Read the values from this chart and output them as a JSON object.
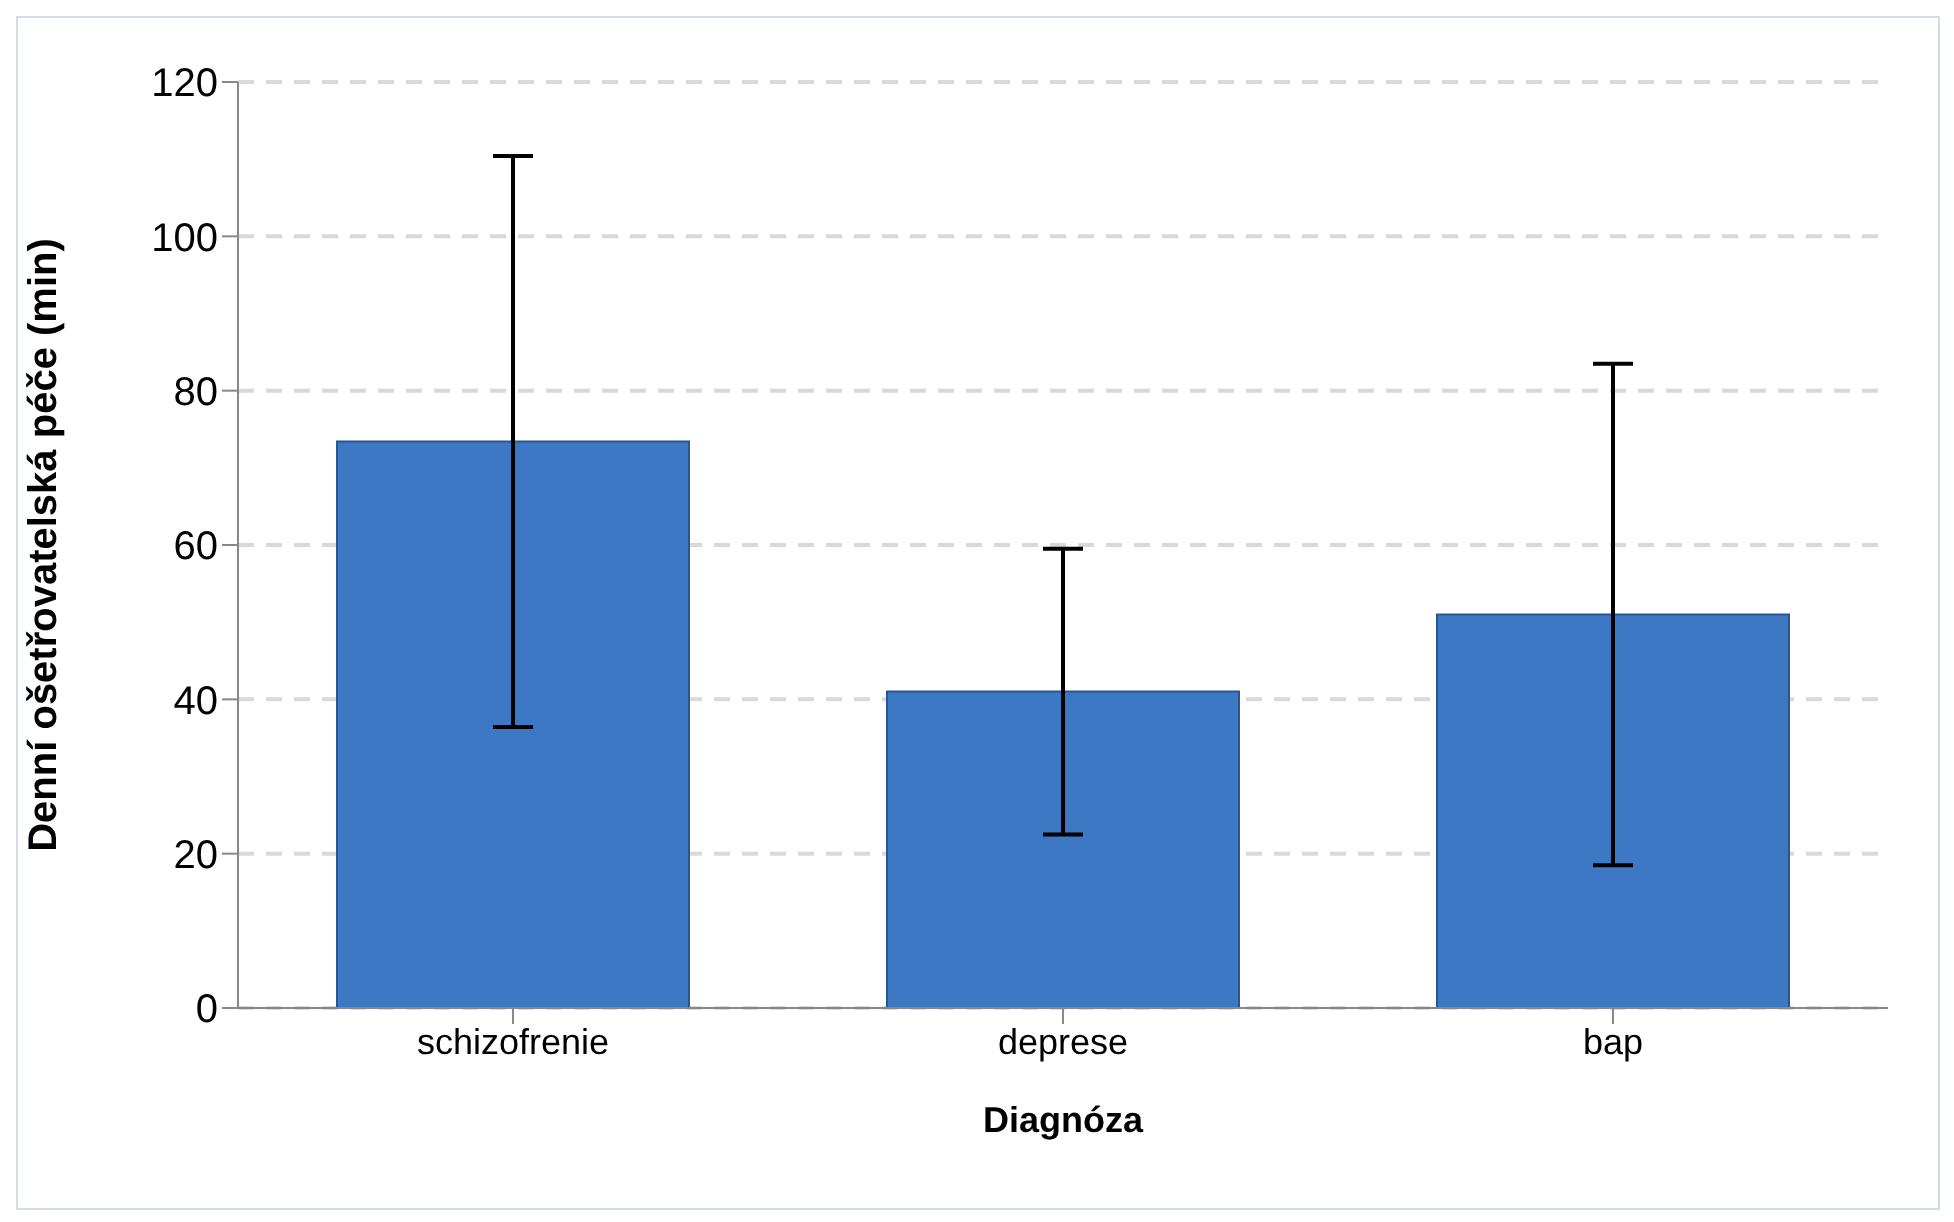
{
  "chart_data": {
    "type": "bar",
    "xlabel": "Diagnóza",
    "ylabel": "Denní ošetřovatelská péče (min)",
    "categories": [
      "schizofrenie",
      "deprese",
      "bap"
    ],
    "values": [
      73.4,
      41,
      51
    ],
    "errors": [
      37,
      18.5,
      32.5
    ],
    "color": "#3d78c4",
    "ylim": [
      0,
      120
    ],
    "yticks": [
      0,
      20,
      40,
      60,
      80,
      100,
      120
    ],
    "grid": "y"
  }
}
